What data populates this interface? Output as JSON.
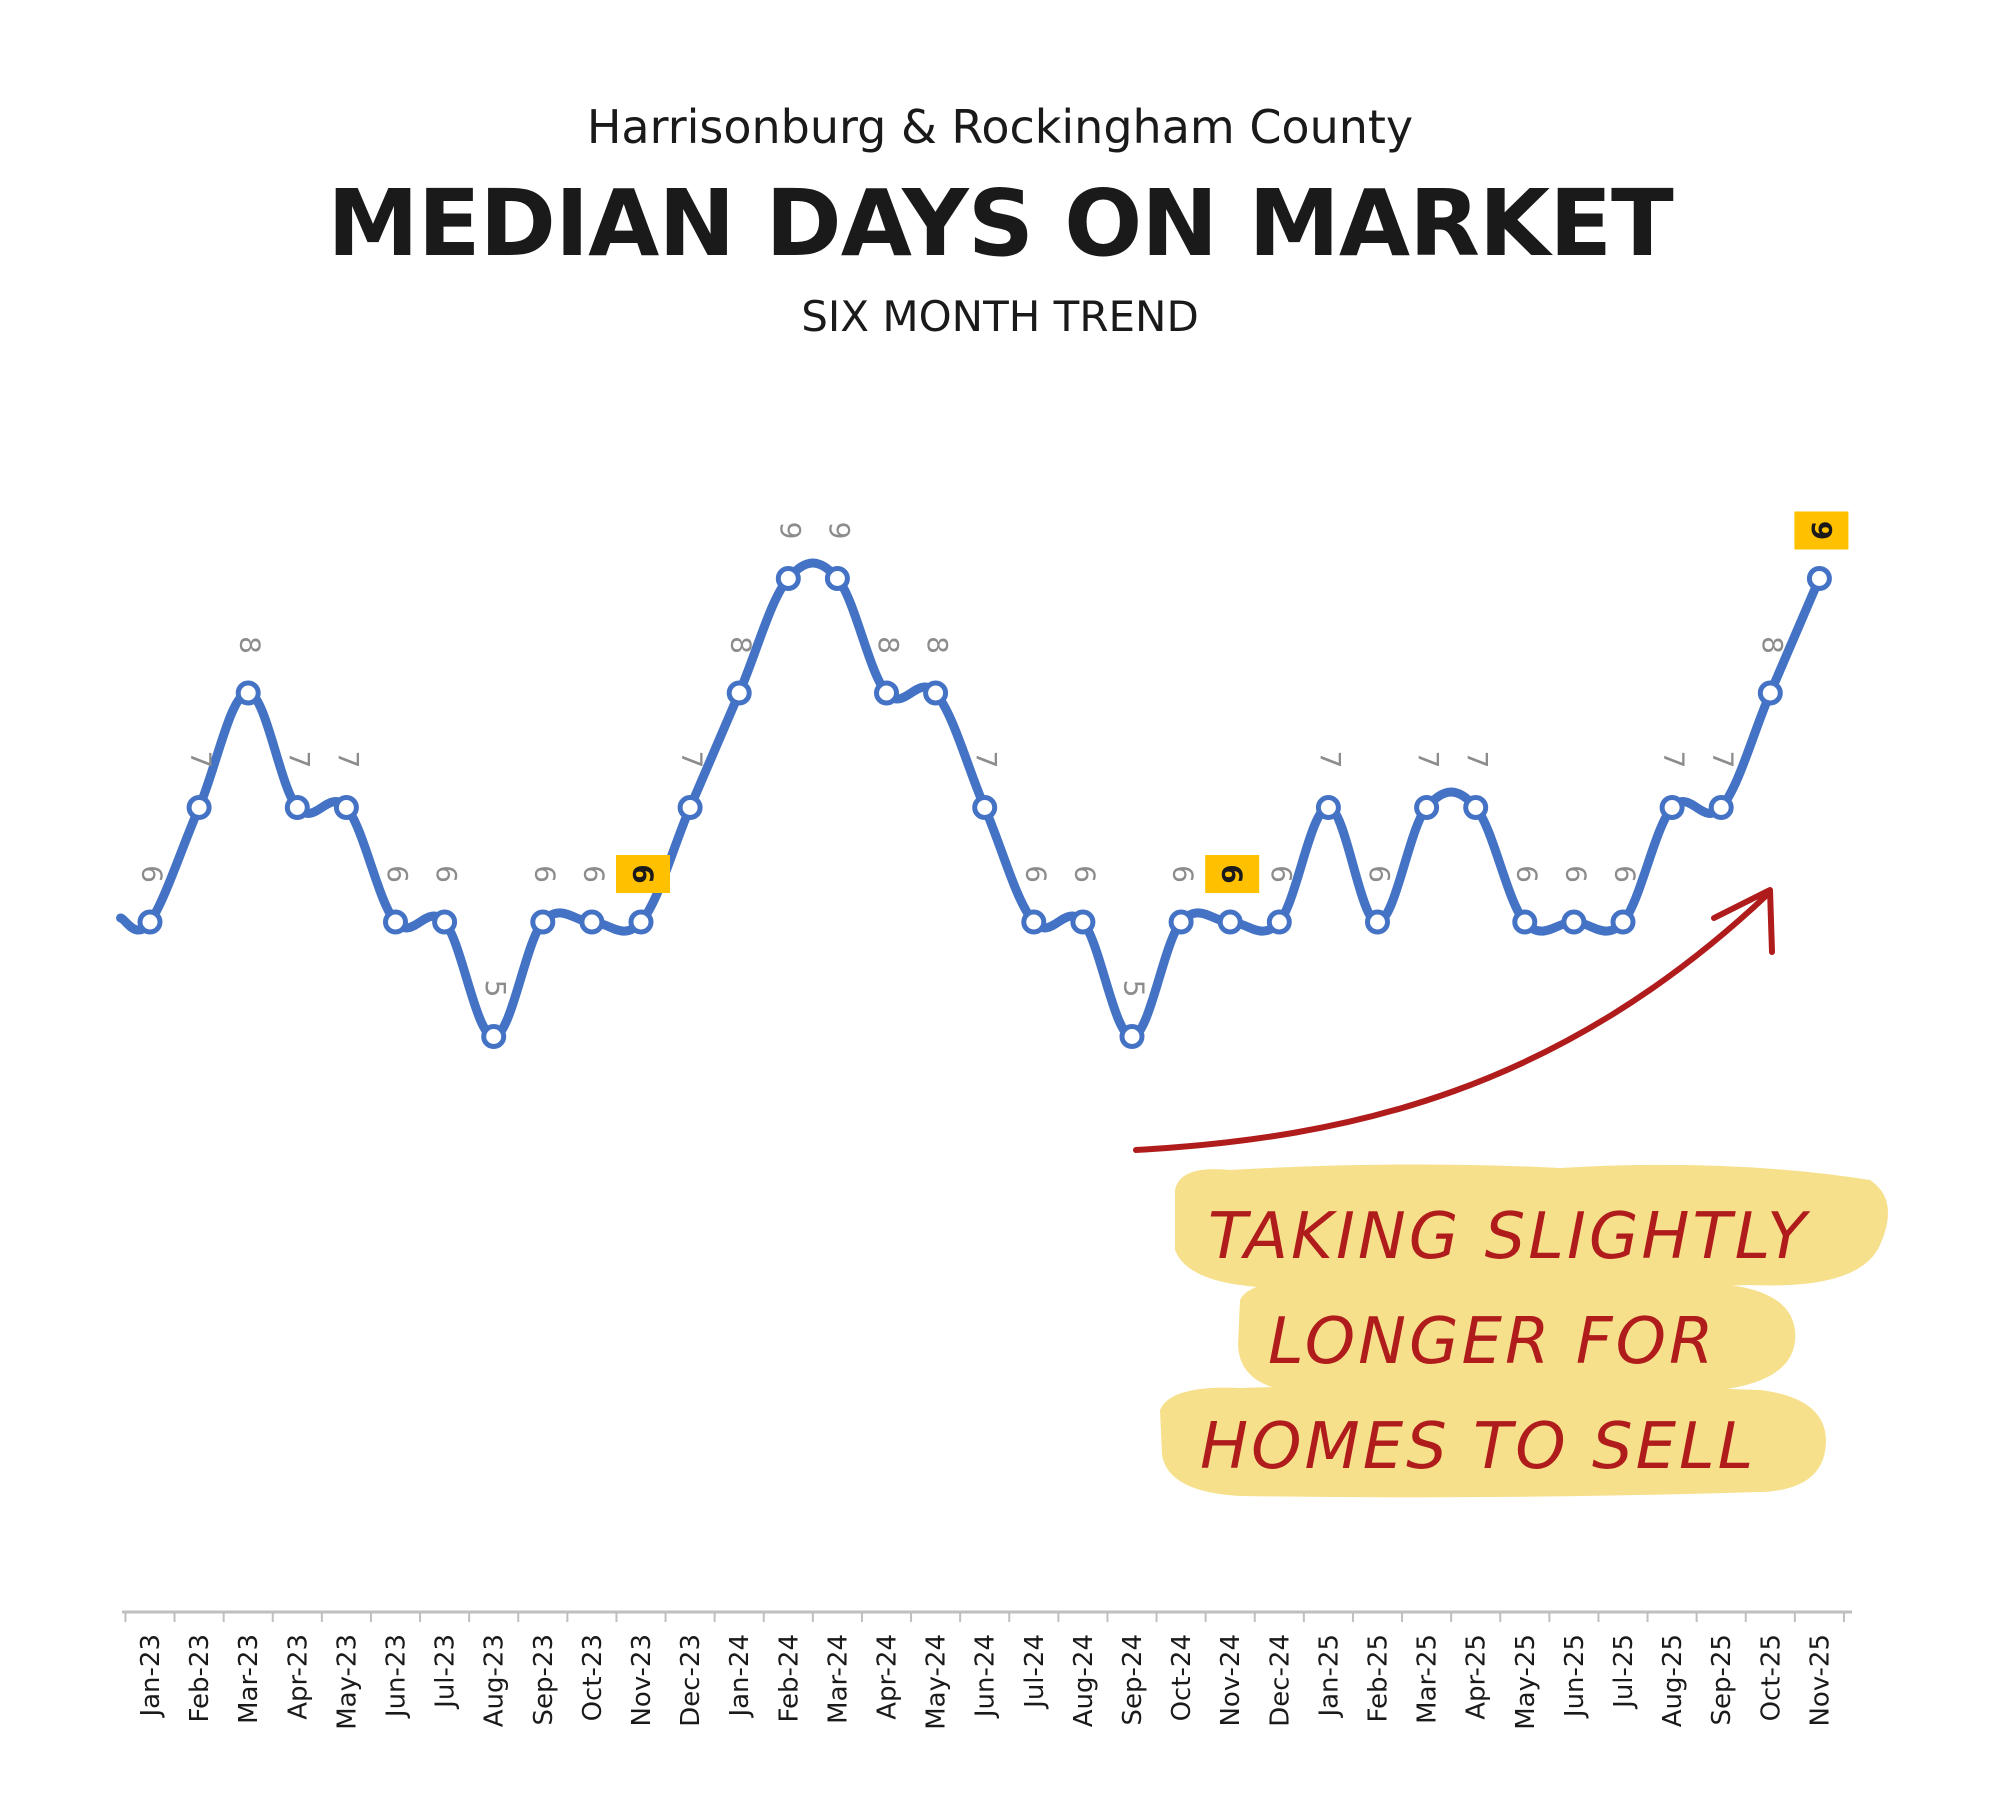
{
  "header": {
    "supertitle": "Harrisonburg & Rockingham County",
    "title": "MEDIAN DAYS ON MARKET",
    "subtitle": "SIX MONTH TREND"
  },
  "annotation": {
    "lines": [
      "TAKING SLIGHTLY",
      "LONGER  FOR",
      "HOMES TO SELL"
    ],
    "text_color": "#b01c1c",
    "highlight_color": "#f7e08c",
    "arrow_color": "#b01c1c"
  },
  "colors": {
    "line": "#4472c4",
    "data_label": "#8c8c8c",
    "highlight_label_bg": "#ffc000",
    "highlight_label_text": "#1a1a1a",
    "axis": "#bfbfbf",
    "tick_label": "#1a1a1a"
  },
  "chart_data": {
    "type": "line",
    "title": "MEDIAN DAYS ON MARKET",
    "xlabel": "",
    "ylabel": "",
    "grid": false,
    "legend": "none",
    "categories": [
      "Jan-23",
      "Feb-23",
      "Mar-23",
      "Apr-23",
      "May-23",
      "Jun-23",
      "Jul-23",
      "Aug-23",
      "Sep-23",
      "Oct-23",
      "Nov-23",
      "Dec-23",
      "Jan-24",
      "Feb-24",
      "Mar-24",
      "Apr-24",
      "May-24",
      "Jun-24",
      "Jul-24",
      "Aug-24",
      "Sep-24",
      "Oct-24",
      "Nov-24",
      "Dec-24",
      "Jan-25",
      "Feb-25",
      "Mar-25",
      "Apr-25",
      "May-25",
      "Jun-25",
      "Jul-25",
      "Aug-25",
      "Sep-25",
      "Oct-25",
      "Nov-25"
    ],
    "series": [
      {
        "name": "",
        "values": [
          6,
          7,
          8,
          7,
          7,
          6,
          6,
          5,
          6,
          6,
          6,
          7,
          8,
          9,
          9,
          8,
          8,
          7,
          6,
          6,
          5,
          6,
          6,
          6,
          7,
          6,
          7,
          7,
          6,
          6,
          6,
          7,
          7,
          8,
          9
        ]
      }
    ],
    "highlighted_points": [
      "Nov-23",
      "Nov-24",
      "Nov-25"
    ],
    "data_labels": [
      "6",
      "7",
      "8",
      "7",
      "7",
      "6",
      "6",
      "5",
      "6",
      "6",
      "6",
      "7",
      "8",
      "9",
      "9",
      "8",
      "8",
      "7",
      "6",
      "6",
      "5",
      "6",
      "6",
      "6",
      "7",
      "6",
      "7",
      "7",
      "6",
      "6",
      "6",
      "7",
      "7",
      "8",
      "9"
    ],
    "ylim": [
      1,
      10
    ]
  }
}
